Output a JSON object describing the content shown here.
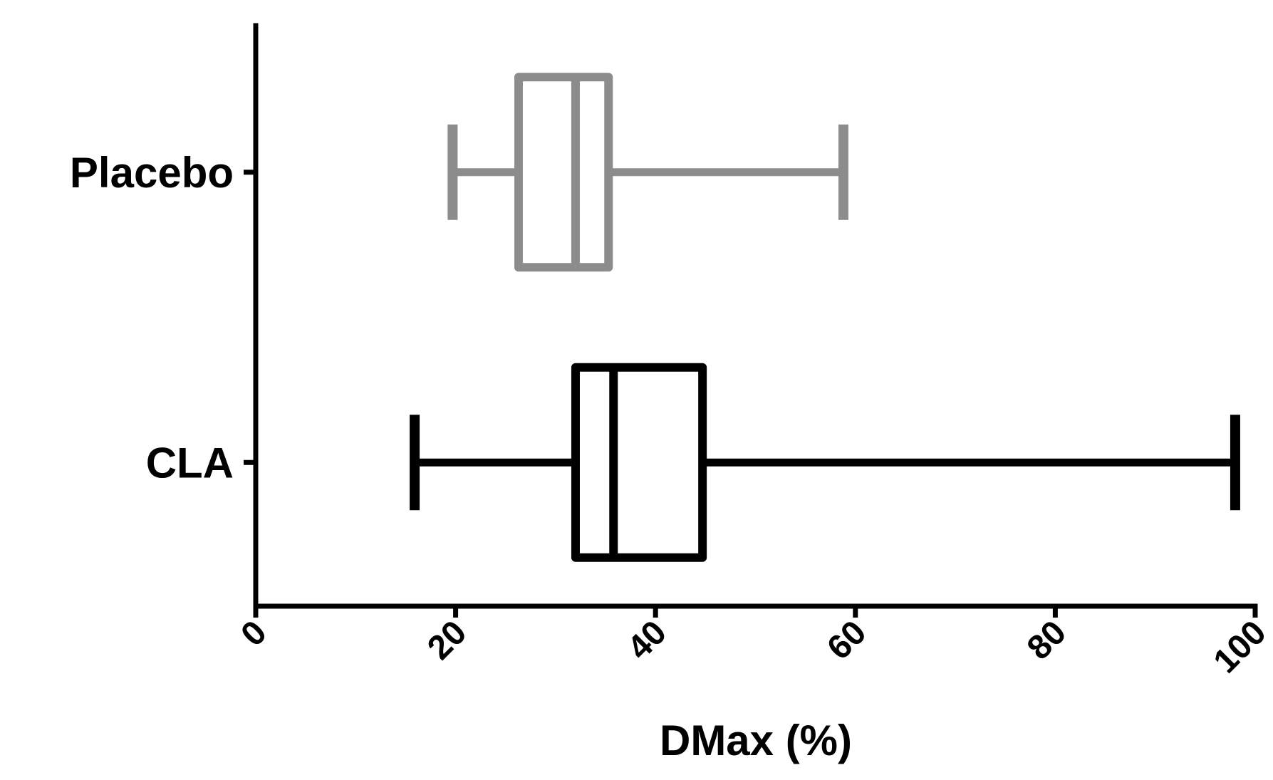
{
  "chart_data": {
    "type": "boxplot",
    "orientation": "horizontal",
    "title": "",
    "xlabel": "DMax (%)",
    "ylabel": "",
    "xlim": [
      0,
      100
    ],
    "xticks": [
      0,
      20,
      40,
      60,
      80,
      100
    ],
    "xtick_labels": [
      "0",
      "20",
      "40",
      "60",
      "80",
      "100"
    ],
    "grid": false,
    "legend": "none",
    "categories": [
      "Placebo",
      "CLA"
    ],
    "series": [
      {
        "category": "Placebo",
        "color": "#8c8c8c",
        "min": 19.7,
        "q1": 26.3,
        "median": 32.0,
        "q3": 35.3,
        "max": 58.8
      },
      {
        "category": "CLA",
        "color": "#000000",
        "min": 15.9,
        "q1": 32.0,
        "median": 35.8,
        "q3": 44.7,
        "max": 98.0
      }
    ]
  }
}
